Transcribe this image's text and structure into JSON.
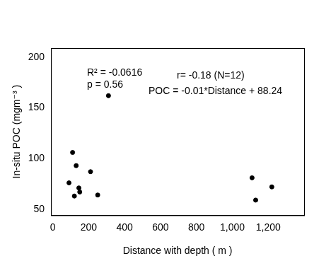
{
  "chart_data": {
    "type": "scatter",
    "x_label": "Distance with depth ( m )",
    "y_label": "In-situ POC (mgm⁻³ )",
    "annotations": [
      "R² = -0.0616",
      "p = 0.56",
      "r= -0.18 (N=12)",
      "POC = -0.01*Distance + 88.24"
    ],
    "x": [
      90,
      110,
      120,
      130,
      145,
      150,
      210,
      250,
      310,
      1110,
      1130,
      1220
    ],
    "values": [
      76,
      106,
      63,
      93,
      71,
      67,
      87,
      64,
      162,
      81,
      59,
      72
    ],
    "color": "#000000",
    "marker": "circle",
    "xlim": [
      -10,
      1400
    ],
    "xticks": [
      0,
      200,
      400,
      600,
      800,
      1000,
      1200
    ],
    "ylim": [
      44,
      209
    ],
    "yticks": [
      50,
      100,
      150,
      200
    ],
    "grid": false
  }
}
